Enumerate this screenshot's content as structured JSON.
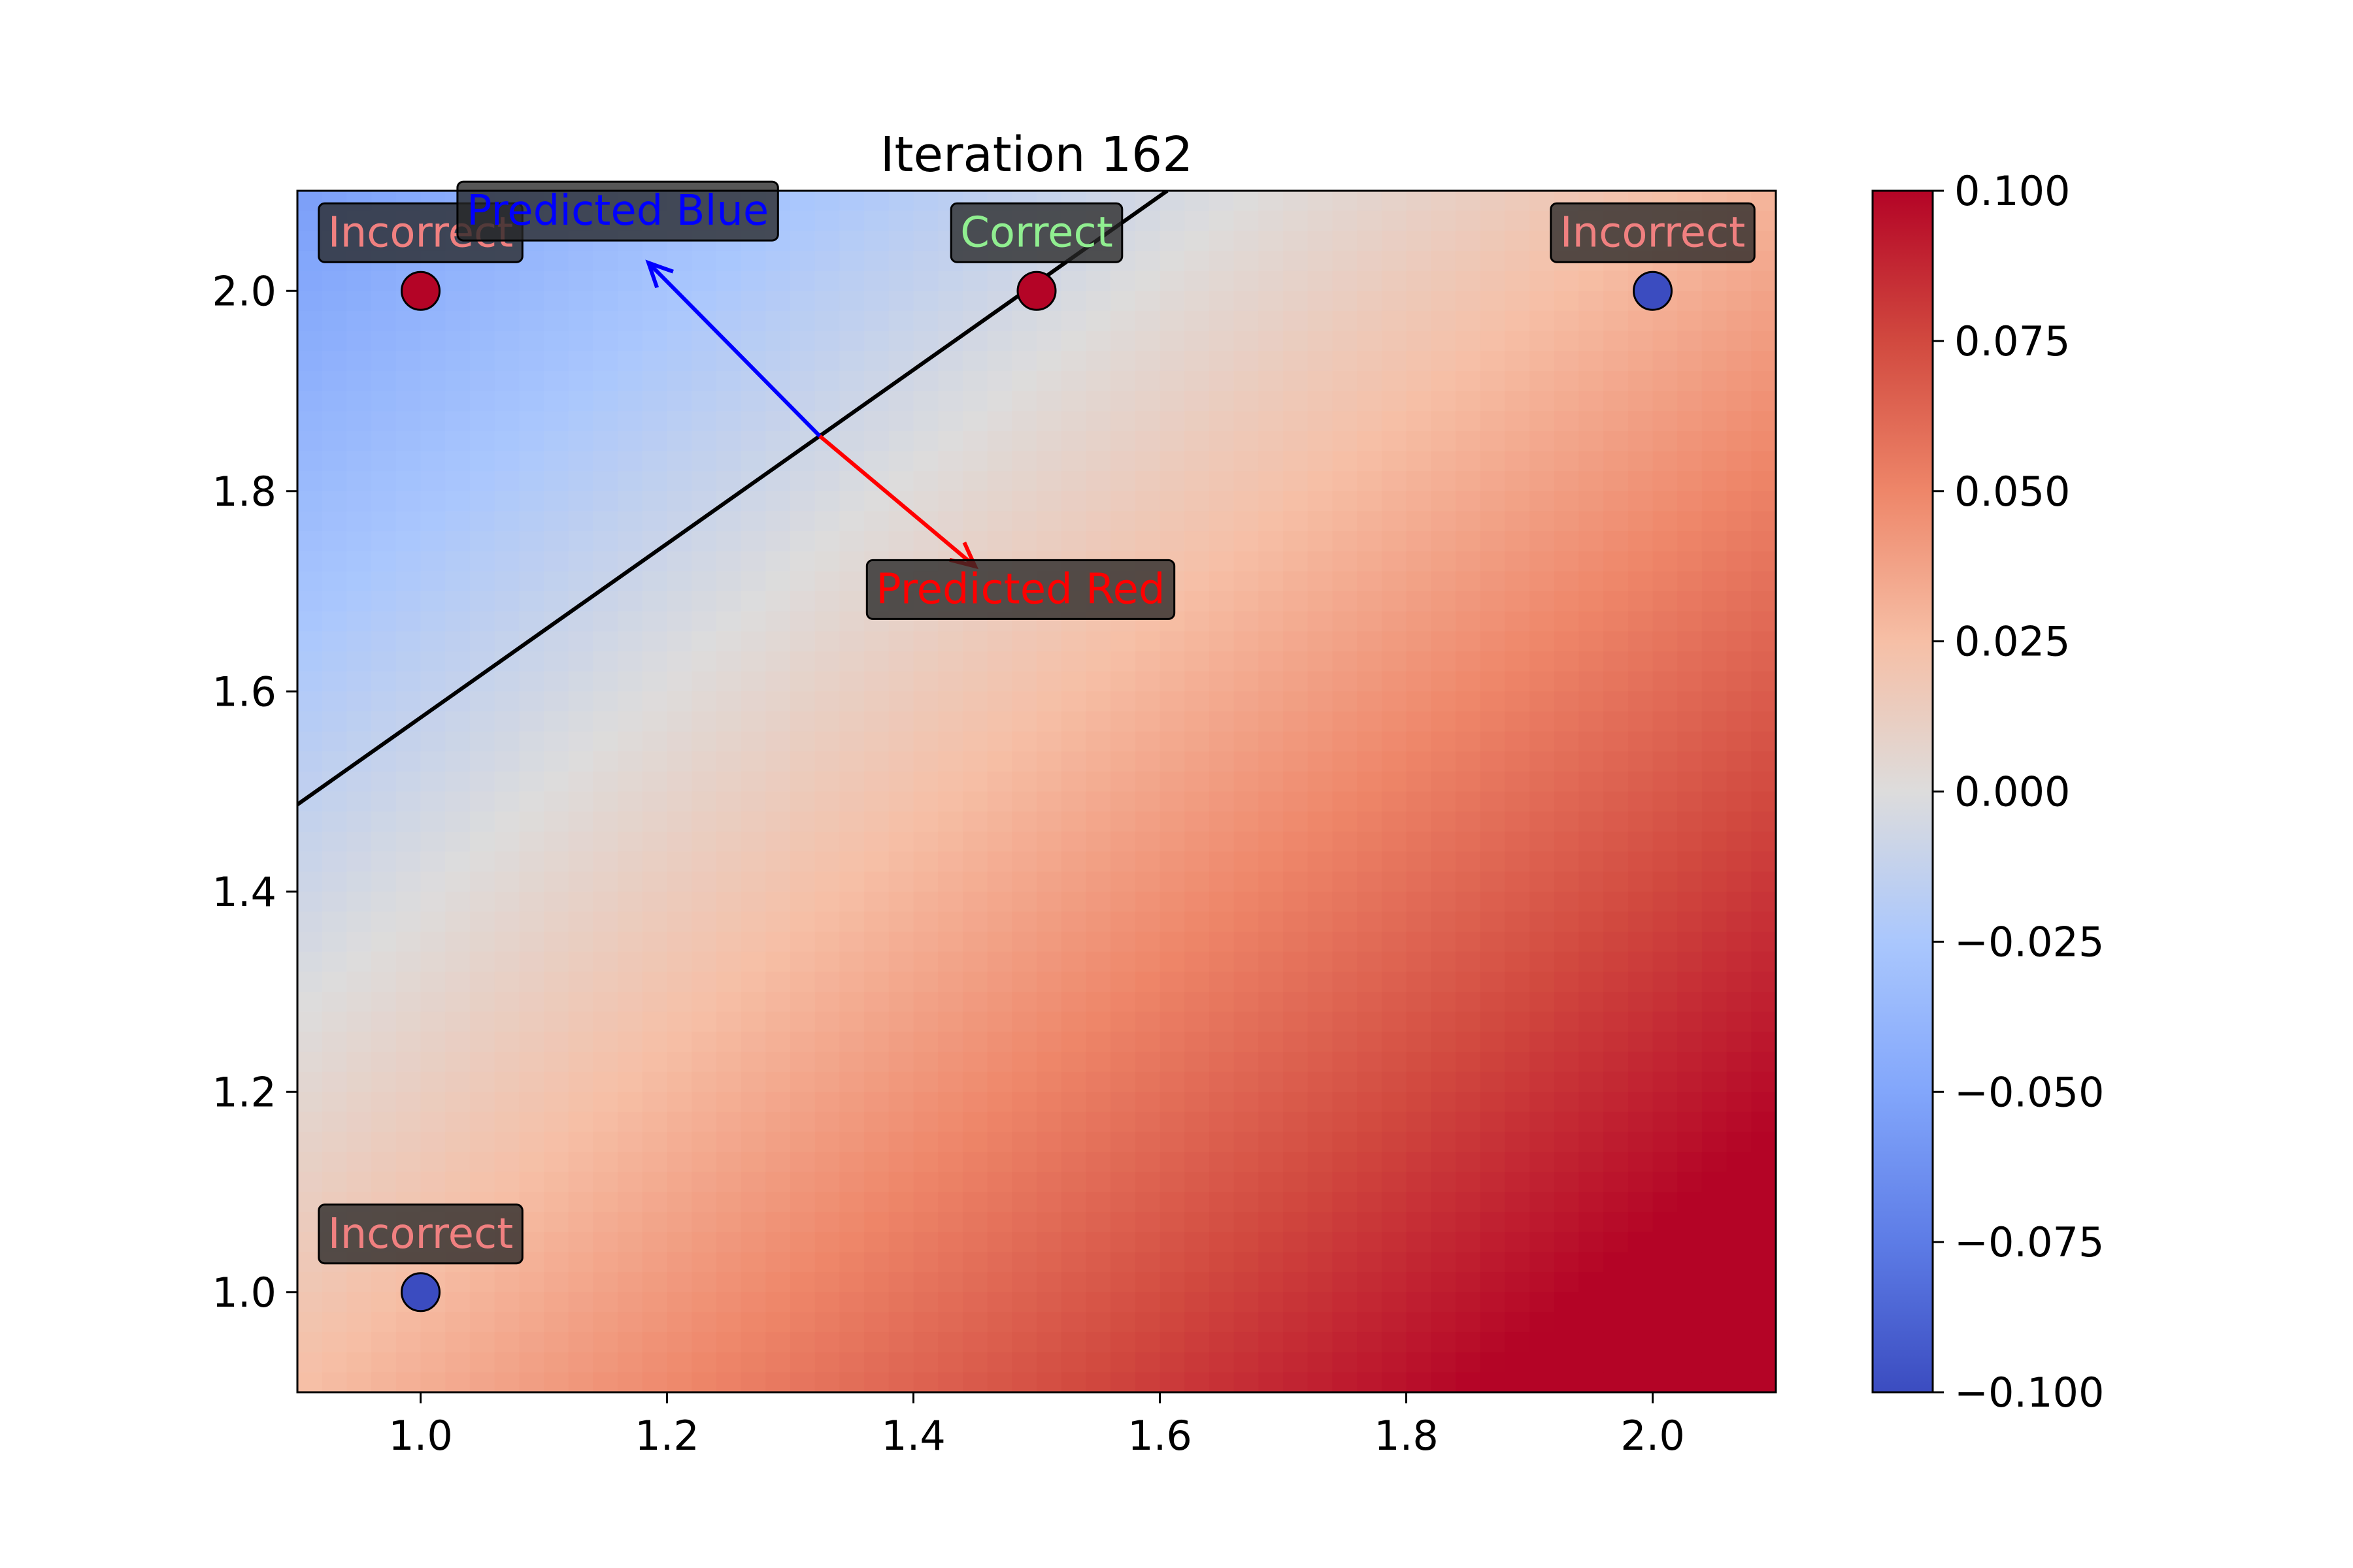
{
  "chart_data": [
    {
      "type": "heatmap",
      "title": "Iteration 162",
      "xlabel": "",
      "ylabel": "",
      "xlim": [
        0.9,
        2.1
      ],
      "ylim": [
        0.9,
        2.1
      ],
      "x_ticks": [
        "1.0",
        "1.2",
        "1.4",
        "1.6",
        "1.8",
        "2.0"
      ],
      "y_ticks": [
        "1.0",
        "1.2",
        "1.4",
        "1.6",
        "1.8",
        "2.0"
      ],
      "colormap": "coolwarm",
      "color_range": [
        -0.1,
        0.1
      ],
      "background_field": {
        "description": "linear decision function over the grid",
        "value_top_left": -0.055,
        "value_top_right": 0.03,
        "value_bottom_left": 0.025,
        "value_bottom_right": 0.12
      },
      "decision_boundary": {
        "color": "#000000",
        "points": [
          [
            0.9,
            1.487
          ],
          [
            1.606,
            2.1
          ]
        ]
      },
      "points": [
        {
          "x": 1.0,
          "y": 2.0,
          "color": "#b40426",
          "label": "Incorrect",
          "label_color": "#f08080"
        },
        {
          "x": 1.5,
          "y": 2.0,
          "color": "#b40426",
          "label": "Correct",
          "label_color": "#90ee90"
        },
        {
          "x": 2.0,
          "y": 2.0,
          "color": "#3b4cc0",
          "label": "Incorrect",
          "label_color": "#f08080"
        },
        {
          "x": 1.0,
          "y": 1.0,
          "color": "#3b4cc0",
          "label": "Incorrect",
          "label_color": "#f08080"
        }
      ],
      "arrows": [
        {
          "from": [
            1.324,
            1.855
          ],
          "to": [
            1.185,
            2.028
          ],
          "color": "#0000ff",
          "label": "Predicted Blue",
          "label_at": [
            1.16,
            2.066
          ]
        },
        {
          "from": [
            1.324,
            1.855
          ],
          "to": [
            1.45,
            1.725
          ],
          "color": "#ff0000",
          "label": "Predicted Red",
          "label_at": [
            1.487,
            1.688
          ]
        }
      ]
    },
    {
      "type": "colorbar",
      "colormap": "coolwarm",
      "range": [
        -0.1,
        0.1
      ],
      "ticks": [
        "0.100",
        "0.075",
        "0.050",
        "0.025",
        "0.000",
        "−0.025",
        "−0.050",
        "−0.075",
        "−0.100"
      ]
    }
  ]
}
